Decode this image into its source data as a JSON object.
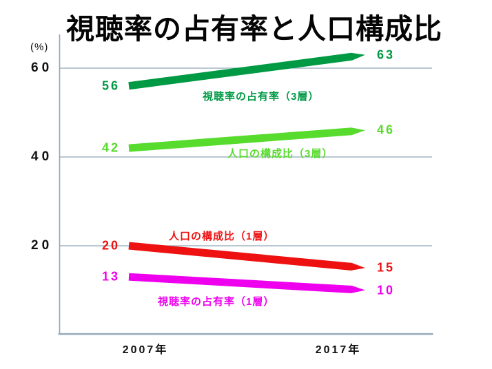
{
  "title": "視聴率の占有率と人口構成比",
  "y_axis": {
    "unit_label": "(%)",
    "ticks": [
      {
        "label": "60"
      },
      {
        "label": "40"
      },
      {
        "label": "20"
      }
    ]
  },
  "x_axis": {
    "labels": [
      {
        "label": "2007年"
      },
      {
        "label": "2017年"
      }
    ]
  },
  "chart_data": {
    "type": "line",
    "title": "視聴率の占有率と人口構成比",
    "x_categories": [
      "2007年",
      "2017年"
    ],
    "ylabel": "(%)",
    "ylim": [
      0,
      67
    ],
    "yticks": [
      60,
      40,
      20
    ],
    "grid": true,
    "legend_position": "inline-labels-on-lines",
    "series": [
      {
        "name": "視聴率の占有率（3層）",
        "values": [
          56,
          63
        ],
        "color": "#009944"
      },
      {
        "name": "人口の構成比（3層）",
        "values": [
          42,
          46
        ],
        "color": "#57DB2C"
      },
      {
        "name": "人口の構成比（1層）",
        "values": [
          20,
          15
        ],
        "color": "#EE1111"
      },
      {
        "name": "視聴率の占有率（1層）",
        "values": [
          13,
          10
        ],
        "color": "#EE00EE"
      }
    ],
    "style_colors": {
      "gridline": "#8FA6B8",
      "baseline": "#9AACBC",
      "title_text": "#050505"
    }
  }
}
